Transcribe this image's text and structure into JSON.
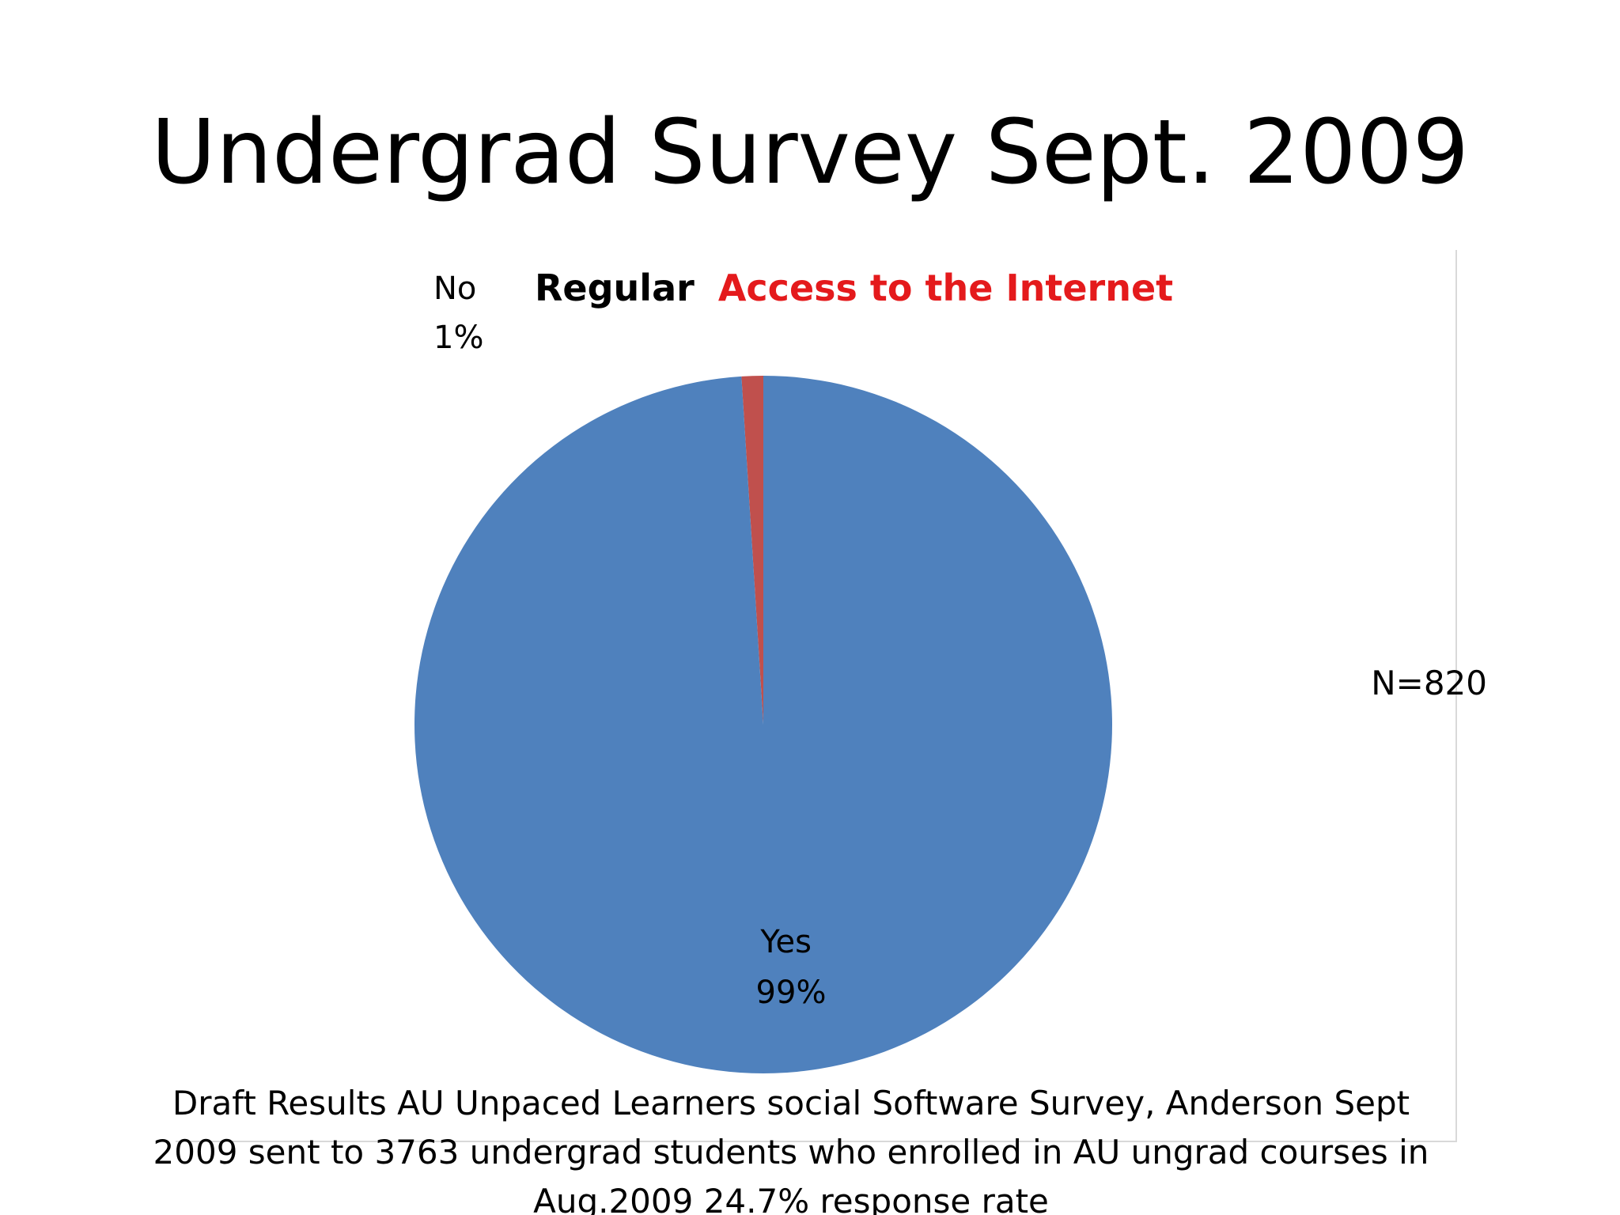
{
  "slide": {
    "title": "Undergrad Survey Sept. 2009",
    "sample_size": "N=820",
    "source_note": "Draft Results AU Unpaced Learners social Software Survey, Anderson Sept 2009 sent to 3763 undergrad students who enrolled in AU ungrad courses in Aug.2009  24.7% response rate"
  },
  "chart_data": {
    "type": "pie",
    "title_parts": [
      {
        "text": "Regular",
        "color": "#000000"
      },
      {
        "text": "Access to the Internet",
        "color": "#e41a1c"
      }
    ],
    "slices": [
      {
        "label": "Yes",
        "percent_label": "99%",
        "value": 99,
        "color": "#4f81bd"
      },
      {
        "label": "No",
        "percent_label": "1%",
        "value": 1,
        "color": "#c0504d"
      }
    ],
    "start_angle": "top",
    "order": "clockwise, No slice first"
  }
}
